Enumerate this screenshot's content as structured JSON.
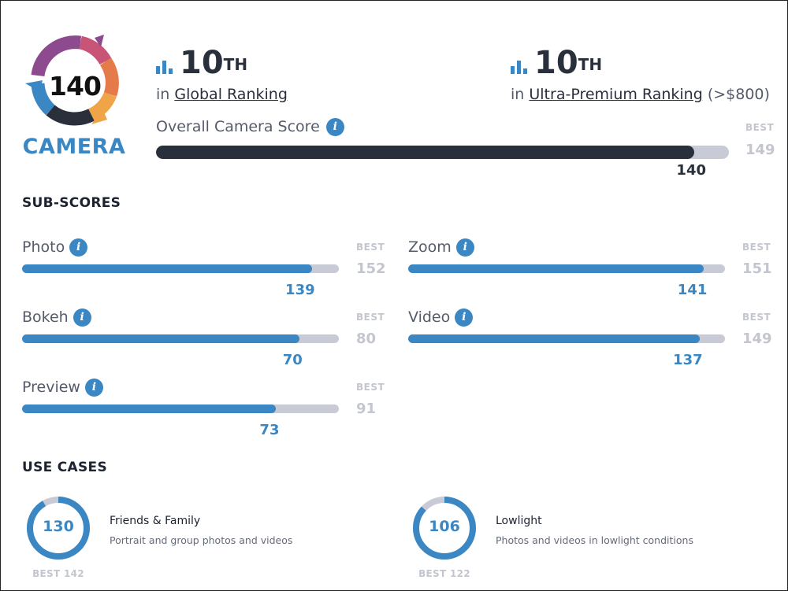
{
  "logo": {
    "score": "140",
    "word": "CAMERA",
    "colors": [
      "#8e4a8f",
      "#c85577",
      "#e57a4b",
      "#f0a448",
      "#3a87c4",
      "#2a2f3c"
    ]
  },
  "rankings": [
    {
      "rank": "10",
      "suffix": "TH",
      "prefix": "in",
      "link": "Global Ranking",
      "note": ""
    },
    {
      "rank": "10",
      "suffix": "TH",
      "prefix": "in",
      "link": "Ultra-Premium Ranking",
      "note": "(>$800)"
    }
  ],
  "overall": {
    "label": "Overall Camera Score",
    "info_icon": "i",
    "best_label": "BEST",
    "best": "149",
    "score": "140",
    "fraction": 0.9396,
    "fill_color": "#2a2f3c",
    "track_color": "#c8cad6"
  },
  "subscores": {
    "title": "SUB-SCORES",
    "best_label": "BEST",
    "fill_color": "#3a87c4",
    "items": [
      {
        "label": "Photo",
        "score": "139",
        "best": "152",
        "fraction": 0.9145
      },
      {
        "label": "Zoom",
        "score": "141",
        "best": "151",
        "fraction": 0.9338
      },
      {
        "label": "Bokeh",
        "score": "70",
        "best": "80",
        "fraction": 0.875
      },
      {
        "label": "Video",
        "score": "137",
        "best": "149",
        "fraction": 0.9195
      },
      {
        "label": "Preview",
        "score": "73",
        "best": "91",
        "fraction": 0.8022
      }
    ]
  },
  "use_cases": {
    "title": "USE CASES",
    "items": [
      {
        "score": "130",
        "best_text": "BEST 142",
        "fraction": 0.9155,
        "title": "Friends & Family",
        "description": "Portrait and group photos and videos"
      },
      {
        "score": "106",
        "best_text": "BEST 122",
        "fraction": 0.8689,
        "title": "Lowlight",
        "description": "Photos and videos in lowlight conditions"
      }
    ],
    "ring_color": "#3a87c4",
    "ring_track_color": "#c8cad6"
  }
}
